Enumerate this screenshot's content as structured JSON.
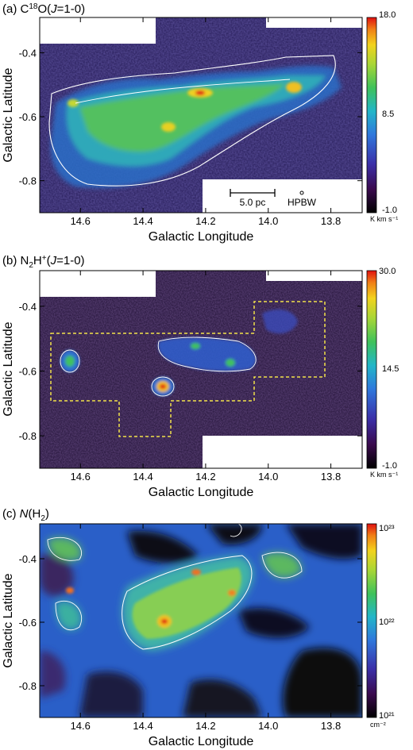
{
  "panels": [
    {
      "id": "a",
      "title": "(a) C¹⁸O(J=1-0)",
      "title_parts": {
        "prefix": "(a) C",
        "sup": "18",
        "mid": "O(",
        "italic": "J",
        "suffix": "=1-0)"
      },
      "xlabel": "Galactic Longitude",
      "ylabel": "Galactic Latitude",
      "xticks": [
        "14.6",
        "14.4",
        "14.2",
        "14.0",
        "13.8"
      ],
      "yticks": [
        "-0.4",
        "-0.6",
        "-0.8"
      ],
      "colorbar": {
        "max": "18.0",
        "mid": "8.5",
        "min": "-1.0",
        "unit": "K km s⁻¹"
      },
      "scalebar_label": "5.0 pc",
      "beam_label": "HPBW"
    },
    {
      "id": "b",
      "title": "(b) N₂H⁺(J=1-0)",
      "title_parts": {
        "prefix": "(b) N",
        "sub": "2",
        "mid": "H",
        "sup": "+",
        "mid2": "(",
        "italic": "J",
        "suffix": "=1-0)"
      },
      "xlabel": "Galactic Longitude",
      "ylabel": "Galactic Latitude",
      "xticks": [
        "14.6",
        "14.4",
        "14.2",
        "14.0",
        "13.8"
      ],
      "yticks": [
        "-0.4",
        "-0.6",
        "-0.8"
      ],
      "colorbar": {
        "max": "30.0",
        "mid": "14.5",
        "min": "-1.0",
        "unit": "K km s⁻¹"
      }
    },
    {
      "id": "c",
      "title": "(c) N(H₂)",
      "title_parts": {
        "prefix": "(c) ",
        "italic": "N",
        "mid": "(H",
        "sub": "2",
        "suffix": ")"
      },
      "xlabel": "Galactic Longitude",
      "ylabel": "Galactic Latitude",
      "xticks": [
        "14.6",
        "14.4",
        "14.2",
        "14.0",
        "13.8"
      ],
      "yticks": [
        "-0.4",
        "-0.6",
        "-0.8"
      ],
      "colorbar": {
        "max": "10²³",
        "mid": "10²²",
        "min": "10²¹",
        "unit": "cm⁻²",
        "log": true
      }
    }
  ],
  "chart_data": [
    {
      "type": "heatmap",
      "title": "(a) C18O(J=1-0)",
      "xlabel": "Galactic Longitude",
      "ylabel": "Galactic Latitude",
      "xlim": [
        14.73,
        13.7
      ],
      "ylim": [
        -0.9,
        -0.29
      ],
      "xticks": [
        14.6,
        14.4,
        14.2,
        14.0,
        13.8
      ],
      "yticks": [
        -0.4,
        -0.6,
        -0.8
      ],
      "colorbar": {
        "min": -1.0,
        "max": 18.0,
        "ticks": [
          -1.0,
          8.5,
          18.0
        ],
        "unit": "K km s-1"
      },
      "peaks": [
        {
          "l": 14.21,
          "b": -0.52,
          "value": 18.0
        },
        {
          "l": 13.9,
          "b": -0.5,
          "value": 12.0
        },
        {
          "l": 14.33,
          "b": -0.65,
          "value": 10.0
        },
        {
          "l": 14.66,
          "b": -0.57,
          "value": 9.0
        }
      ],
      "scalebar": "5.0 pc",
      "beam": "HPBW"
    },
    {
      "type": "heatmap",
      "title": "(b) N2H+(J=1-0)",
      "xlabel": "Galactic Longitude",
      "ylabel": "Galactic Latitude",
      "xlim": [
        14.73,
        13.7
      ],
      "ylim": [
        -0.9,
        -0.29
      ],
      "xticks": [
        14.6,
        14.4,
        14.2,
        14.0,
        13.8
      ],
      "yticks": [
        -0.4,
        -0.6,
        -0.8
      ],
      "colorbar": {
        "min": -1.0,
        "max": 30.0,
        "ticks": [
          -1.0,
          14.5,
          30.0
        ],
        "unit": "K km s-1"
      },
      "peaks": [
        {
          "l": 14.33,
          "b": -0.64,
          "value": 30.0
        },
        {
          "l": 14.67,
          "b": -0.57,
          "value": 22.0
        },
        {
          "l": 14.21,
          "b": -0.52,
          "value": 18.0
        },
        {
          "l": 14.1,
          "b": -0.57,
          "value": 16.0
        }
      ]
    },
    {
      "type": "heatmap",
      "title": "(c) N(H2)",
      "xlabel": "Galactic Longitude",
      "ylabel": "Galactic Latitude",
      "xlim": [
        14.73,
        13.7
      ],
      "ylim": [
        -0.9,
        -0.29
      ],
      "xticks": [
        14.6,
        14.4,
        14.2,
        14.0,
        13.8
      ],
      "yticks": [
        -0.4,
        -0.6,
        -0.8
      ],
      "colorbar": {
        "min": 1e+21,
        "max": 1e+23,
        "ticks": [
          1e+21,
          1e+22,
          1e+23
        ],
        "unit": "cm-2",
        "scale": "log"
      },
      "peaks": [
        {
          "l": 14.33,
          "b": -0.64,
          "value": 1e+23
        },
        {
          "l": 14.21,
          "b": -0.51,
          "value": 6e+22
        },
        {
          "l": 14.67,
          "b": -0.57,
          "value": 5e+22
        },
        {
          "l": 14.12,
          "b": -0.57,
          "value": 4e+22
        }
      ]
    }
  ]
}
